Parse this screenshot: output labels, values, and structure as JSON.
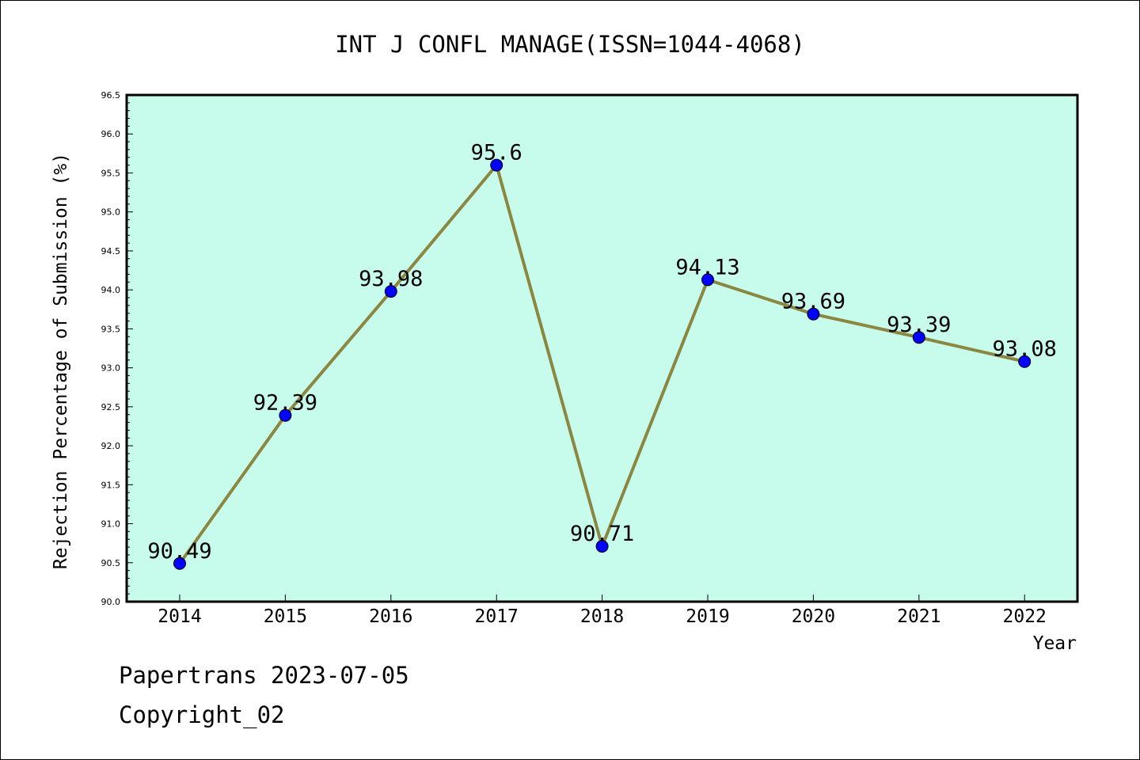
{
  "chart_data": {
    "type": "line",
    "title": "INT J CONFL MANAGE(ISSN=1044-4068)",
    "xlabel": "Year",
    "ylabel": "Rejection Percentage of Submission (%)",
    "categories": [
      "2014",
      "2015",
      "2016",
      "2017",
      "2018",
      "2019",
      "2020",
      "2021",
      "2022"
    ],
    "series": [
      {
        "values": [
          90.49,
          92.39,
          93.98,
          95.6,
          90.71,
          94.13,
          93.69,
          93.39,
          93.08
        ]
      }
    ],
    "data_labels": [
      "90.49",
      "92.39",
      "93.98",
      "95.6",
      "90.71",
      "94.13",
      "93.69",
      "93.39",
      "93.08"
    ],
    "ylim": [
      90.0,
      96.5
    ],
    "yticks": [
      "90.0",
      "90.5",
      "91.0",
      "91.5",
      "92.0",
      "92.5",
      "93.0",
      "93.5",
      "94.0",
      "94.5",
      "95.0",
      "95.5",
      "96.0",
      "96.5"
    ],
    "grid": false,
    "legend": "none",
    "colors": {
      "plot_background": "#c7fcec",
      "line": "#8b8640",
      "marker": "#0000ff",
      "axis": "#000000"
    }
  },
  "footer": {
    "source": "Papertrans 2023-07-05",
    "copyright": "Copyright_02"
  }
}
